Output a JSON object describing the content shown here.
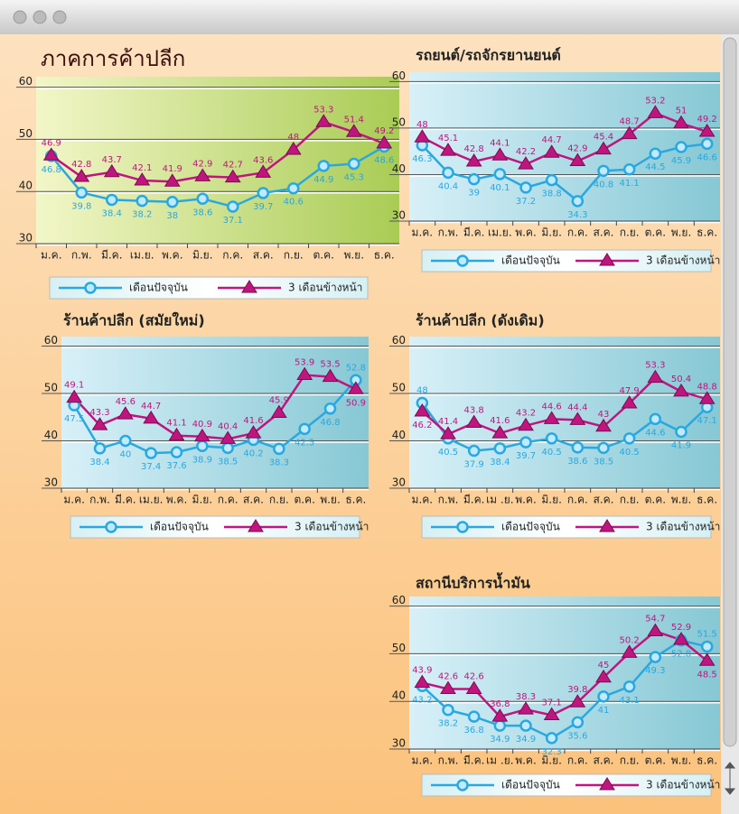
{
  "chart_data": [
    {
      "type": "line",
      "title": "ภาคการค้าปลีก",
      "categories": [
        "ม.ค.",
        "ก.พ.",
        "มี.ค.",
        "เม.ย.",
        "พ.ค.",
        "มิ.ย.",
        "ก.ค.",
        "ส.ค.",
        "ก.ย.",
        "ต.ค.",
        "พ.ย.",
        "ธ.ค."
      ],
      "series": [
        {
          "name": "เดือนปัจจุบัน",
          "color": "#29a8e0",
          "values": [
            46.8,
            39.8,
            38.4,
            38.2,
            38.0,
            38.6,
            37.1,
            39.7,
            40.6,
            44.9,
            45.3,
            48.6
          ]
        },
        {
          "name": "3 เดือนข้างหน้า",
          "color": "#c0157f",
          "values": [
            46.9,
            42.8,
            43.7,
            42.1,
            41.9,
            42.9,
            42.7,
            43.6,
            48.0,
            53.3,
            51.4,
            49.2
          ]
        }
      ],
      "ylim": [
        30,
        62
      ],
      "yticks": [
        30,
        40,
        50,
        60
      ],
      "grid": true
    },
    {
      "type": "line",
      "title": "รถยนต์/รถจักรยานยนต์",
      "categories": [
        "ม.ค.",
        "ก.พ.",
        "มี.ค.",
        "เม.ย.",
        "พ.ค.",
        "มิ.ย.",
        "ก.ค.",
        "ส.ค.",
        "ก.ย.",
        "ต.ค.",
        "พ.ย.",
        "ธ.ค."
      ],
      "series": [
        {
          "name": "เดือนปัจจุบัน",
          "color": "#29a8e0",
          "values": [
            46.3,
            40.4,
            39.0,
            40.1,
            37.2,
            38.8,
            34.3,
            40.8,
            41.1,
            44.5,
            45.9,
            46.6
          ]
        },
        {
          "name": "3 เดือนข้างหน้า",
          "color": "#c0157f",
          "values": [
            48.0,
            45.1,
            42.8,
            44.1,
            42.2,
            44.7,
            42.9,
            45.4,
            48.7,
            53.2,
            51.0,
            49.2
          ]
        }
      ],
      "ylim": [
        30,
        62
      ],
      "yticks": [
        30,
        40,
        50,
        60
      ],
      "grid": true
    },
    {
      "type": "line",
      "title": "ร้านค้าปลีก (สมัยใหม่)",
      "categories": [
        "ม.ค.",
        "ก.พ.",
        "มี.ค.",
        "เม.ย.",
        "พ.ค.",
        "มิ.ย.",
        "ก.ค.",
        "ส.ค.",
        "ก.ย.",
        "ต.ค.",
        "พ.ย.",
        "ธ.ค."
      ],
      "series": [
        {
          "name": "เดือนปัจจุบัน",
          "color": "#29a8e0",
          "values": [
            47.5,
            38.4,
            40.0,
            37.4,
            37.6,
            38.9,
            38.5,
            40.2,
            38.3,
            42.5,
            46.8,
            52.8
          ]
        },
        {
          "name": "3 เดือนข้างหน้า",
          "color": "#c0157f",
          "values": [
            49.1,
            43.3,
            45.6,
            44.7,
            41.1,
            40.9,
            40.4,
            41.6,
            45.9,
            53.9,
            53.5,
            50.9
          ]
        }
      ],
      "ylim": [
        30,
        62
      ],
      "yticks": [
        30,
        40,
        50,
        60
      ],
      "grid": true
    },
    {
      "type": "line",
      "title": "ร้านค้าปลีก (ดังเดิม)",
      "categories": [
        "ม.ค.",
        "ก.พ.",
        "มี.ค.",
        "เม .ย.",
        "พ.ค.",
        "มิ.ย.",
        "ก.ค.",
        "ส.ค.",
        "ก.ย.",
        "ต.ค.",
        "พ.ย.",
        "ธ.ค."
      ],
      "series": [
        {
          "name": "เดือนปัจจุบัน",
          "color": "#29a8e0",
          "values": [
            48.0,
            40.5,
            37.9,
            38.4,
            39.7,
            40.5,
            38.6,
            38.5,
            40.5,
            44.6,
            41.9,
            47.1
          ]
        },
        {
          "name": "3 เดือนข้างหน้า",
          "color": "#c0157f",
          "values": [
            46.2,
            41.4,
            43.8,
            41.6,
            43.2,
            44.6,
            44.4,
            43.0,
            47.9,
            53.3,
            50.4,
            48.8
          ]
        }
      ],
      "ylim": [
        30,
        62
      ],
      "yticks": [
        30,
        40,
        50,
        60
      ],
      "grid": true
    },
    {
      "type": "line",
      "title": "สถานีบริการน้ำมัน",
      "categories": [
        "ม.ค.",
        "ก.พ.",
        "มี.ค.",
        "เม .ย.",
        "พ.ค.",
        "มิ.ย.",
        "ก.ค.",
        "ส.ค.",
        "ก.ย.",
        "ต.ค.",
        "พ.ย.",
        "ธ.ค."
      ],
      "series": [
        {
          "name": "เดือนปัจจุบัน",
          "color": "#29a8e0",
          "values": [
            43.2,
            38.2,
            36.8,
            34.9,
            34.9,
            32.3,
            35.6,
            41.0,
            43.1,
            49.3,
            52.8,
            51.5
          ]
        },
        {
          "name": "3 เดือนข้างหน้า",
          "color": "#c0157f",
          "values": [
            43.9,
            42.6,
            42.6,
            36.8,
            38.3,
            37.1,
            39.8,
            45.0,
            50.2,
            54.7,
            52.9,
            48.5
          ]
        }
      ],
      "ylim": [
        30,
        62
      ],
      "yticks": [
        30,
        40,
        50,
        60
      ],
      "grid": true
    }
  ]
}
